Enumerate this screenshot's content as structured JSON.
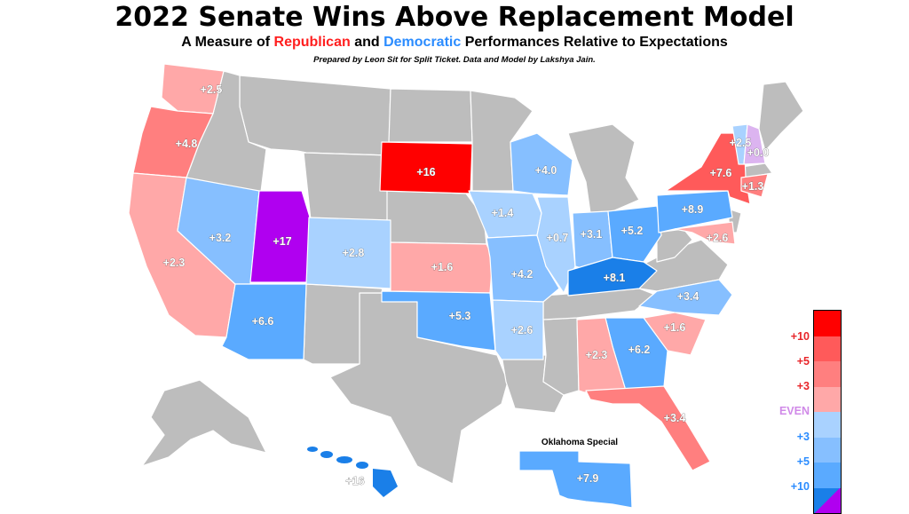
{
  "title": "2022 Senate Wins Above Replacement Model",
  "subtitle": {
    "pre": "A Measure of ",
    "rep": "Republican",
    "mid": " and ",
    "dem": "Democratic",
    "post": " Performances Relative to Expectations"
  },
  "credit": "Prepared by Leon Sit for Split Ticket. Data and Model by Lakshya Jain.",
  "inset_title": "Oklahoma Special",
  "colors": {
    "no_race": "#bdbdbd",
    "r_10": "#ff0000",
    "r_5": "#ff5a5a",
    "r_3": "#ff7f7f",
    "r_0": "#ffa8a8",
    "even": "#dcb4f0",
    "d_0": "#a9d2ff",
    "d_3": "#86bfff",
    "d_5": "#5aaaff",
    "d_10": "#1a7fe8",
    "outlier": "#b000f0"
  },
  "states": [
    {
      "name": "Washington",
      "label": "+2.5",
      "party": "R"
    },
    {
      "name": "Oregon",
      "label": "+4.8",
      "party": "R"
    },
    {
      "name": "California",
      "label": "+2.3",
      "party": "R"
    },
    {
      "name": "Nevada",
      "label": "+3.2",
      "party": "D"
    },
    {
      "name": "Utah",
      "label": "+17",
      "party": "Ind"
    },
    {
      "name": "Arizona",
      "label": "+6.6",
      "party": "D"
    },
    {
      "name": "Colorado",
      "label": "+2.8",
      "party": "D"
    },
    {
      "name": "South Dakota",
      "label": "+16",
      "party": "R"
    },
    {
      "name": "Kansas",
      "label": "+1.6",
      "party": "R"
    },
    {
      "name": "Oklahoma",
      "label": "+5.3",
      "party": "D"
    },
    {
      "name": "Iowa",
      "label": "+1.4",
      "party": "D"
    },
    {
      "name": "Missouri",
      "label": "+4.2",
      "party": "D"
    },
    {
      "name": "Arkansas",
      "label": "+2.6",
      "party": "D"
    },
    {
      "name": "Wisconsin",
      "label": "+4.0",
      "party": "D"
    },
    {
      "name": "Illinois",
      "label": "+0.7",
      "party": "D"
    },
    {
      "name": "Indiana",
      "label": "+3.1",
      "party": "D"
    },
    {
      "name": "Ohio",
      "label": "+5.2",
      "party": "D"
    },
    {
      "name": "Kentucky",
      "label": "+8.1",
      "party": "D"
    },
    {
      "name": "Pennsylvania",
      "label": "+8.9",
      "party": "D"
    },
    {
      "name": "New York",
      "label": "+7.6",
      "party": "R"
    },
    {
      "name": "Vermont",
      "label": "+2.5",
      "party": "D"
    },
    {
      "name": "New Hampshire",
      "label": "+0.0",
      "party": "Even"
    },
    {
      "name": "Connecticut",
      "label": "+1.3",
      "party": "R"
    },
    {
      "name": "Maryland",
      "label": "+2.6",
      "party": "R"
    },
    {
      "name": "North Carolina",
      "label": "+3.4",
      "party": "D"
    },
    {
      "name": "South Carolina",
      "label": "+1.6",
      "party": "R"
    },
    {
      "name": "Georgia",
      "label": "+6.2",
      "party": "D"
    },
    {
      "name": "Alabama",
      "label": "+2.3",
      "party": "R"
    },
    {
      "name": "Florida",
      "label": "+3.4",
      "party": "R"
    },
    {
      "name": "Hawaii",
      "label": "+16",
      "party": "D"
    },
    {
      "name": "Oklahoma Special",
      "label": "+7.9",
      "party": "D"
    }
  ],
  "legend": {
    "labels": [
      {
        "text": "+10",
        "color": "#e8252a"
      },
      {
        "text": "+5",
        "color": "#e8252a"
      },
      {
        "text": "+3",
        "color": "#e8252a"
      },
      {
        "text": "EVEN",
        "color": "#d08ae8"
      },
      {
        "text": "+3",
        "color": "#2b8cff"
      },
      {
        "text": "+5",
        "color": "#2b8cff"
      },
      {
        "text": "+10",
        "color": "#2b8cff"
      }
    ],
    "swatches": [
      "#ff0000",
      "#ff5a5a",
      "#ff7f7f",
      "#ffa8a8",
      "#a9d2ff",
      "#86bfff",
      "#5aaaff"
    ]
  }
}
